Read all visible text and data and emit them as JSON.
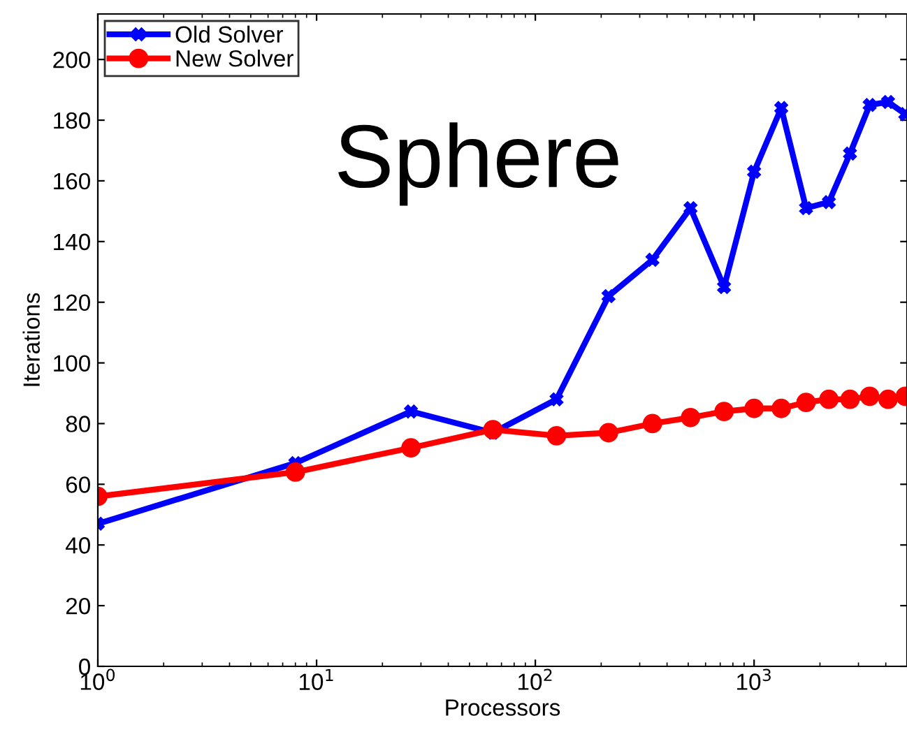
{
  "chart_data": {
    "type": "line",
    "xlabel": "Processors",
    "ylabel": "Iterations",
    "annotations": [
      "Sphere"
    ],
    "x": [
      1,
      8,
      27,
      64,
      125,
      216,
      343,
      512,
      729,
      1000,
      1331,
      1728,
      2197,
      2744,
      3375,
      4096,
      4913
    ],
    "series": [
      {
        "name": "Old Solver",
        "color": "#0000ff",
        "marker": "cross",
        "values": [
          47,
          67,
          84,
          77,
          88,
          122,
          134,
          151,
          125,
          163,
          184,
          151,
          153,
          169,
          185,
          186,
          182
        ]
      },
      {
        "name": "New Solver",
        "color": "#ff0000",
        "marker": "circle",
        "values": [
          56,
          64,
          72,
          78,
          76,
          77,
          80,
          82,
          84,
          85,
          85,
          87,
          88,
          88,
          89,
          88,
          89
        ]
      }
    ],
    "log": "x",
    "xlim": [
      1,
      5000
    ],
    "xticks": [
      {
        "value": 1,
        "label": "10$^{0}$"
      },
      {
        "value": 10,
        "label": "10$^{1}$"
      },
      {
        "value": 100,
        "label": "10$^{2}$"
      },
      {
        "value": 1000,
        "label": "10$^{3}$"
      }
    ],
    "ylim": [
      0,
      215
    ],
    "yticks": [
      0,
      20,
      40,
      60,
      80,
      100,
      120,
      140,
      160,
      180,
      200
    ],
    "grid": false,
    "legend": "top left",
    "line_style": "solid"
  }
}
